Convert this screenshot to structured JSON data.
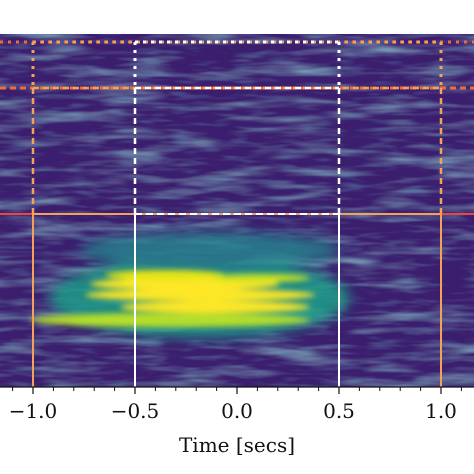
{
  "chart_data": {
    "type": "heatmap",
    "title": "",
    "xlabel": "Time [secs]",
    "ylabel": "",
    "xlim": [
      -1.3,
      1.3
    ],
    "x_ticks": [
      -1.0,
      -0.5,
      0.0,
      0.5,
      1.0
    ],
    "x_tick_labels": [
      "−1.0",
      "−0.5",
      "0.0",
      "0.5",
      "1.0"
    ],
    "colormap": "viridis",
    "background_color": "#3b1f6e",
    "signal_color": "#fde725",
    "annotations": [
      {
        "name": "outer-window",
        "x": [
          -1.0,
          1.0
        ],
        "style": "solid",
        "color": "#f4a259"
      },
      {
        "name": "inner-window",
        "x": [
          -0.5,
          0.5
        ],
        "style": "solid",
        "color": "#ffffff"
      },
      {
        "name": "outer-window-upper",
        "x": [
          -1.0,
          1.0
        ],
        "style": "dashed",
        "color": "#f4a259"
      },
      {
        "name": "inner-window-upper",
        "x": [
          -0.5,
          0.5
        ],
        "style": "dashed",
        "color": "#ffffff"
      },
      {
        "name": "outer-window-top",
        "x": [
          -1.0,
          1.0
        ],
        "style": "dotted",
        "color": "#f4a259"
      },
      {
        "name": "inner-window-top",
        "x": [
          -0.5,
          0.5
        ],
        "style": "dotted",
        "color": "#ffffff"
      }
    ],
    "band_separators": {
      "solid": "#e8473c",
      "dashed": "#f26a3a",
      "dotted": "#f26a3a"
    }
  }
}
